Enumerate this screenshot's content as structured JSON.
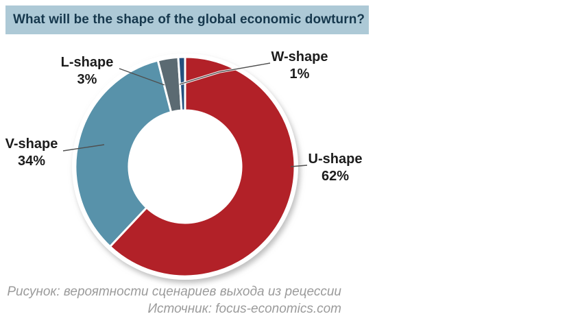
{
  "header": {
    "title": "What will be the shape of the global economic dowturn?"
  },
  "chart_data": {
    "type": "pie",
    "subtype": "donut",
    "title": "What will be the shape of the global economic dowturn?",
    "direction": "clockwise",
    "start_angle_deg": 0,
    "donut_hole_ratio": 0.51,
    "unit": "%",
    "slices": [
      {
        "label": "U-shape",
        "value": 62,
        "pct_label": "62%",
        "color": "#b22128"
      },
      {
        "label": "V-shape",
        "value": 34,
        "pct_label": "34%",
        "color": "#5892aa"
      },
      {
        "label": "L-shape",
        "value": 3,
        "pct_label": "3%",
        "color": "#5b6a72"
      },
      {
        "label": "W-shape",
        "value": 1,
        "pct_label": "1%",
        "color": "#24507e"
      }
    ],
    "legend_position": "callout-labels"
  },
  "caption": {
    "figure": "Рисунок: вероятности сценариев выхода из рецессии",
    "source": "Источник: focus-economics.com"
  },
  "colors": {
    "title_bar_bg": "#adc9d6",
    "title_text": "#16384d",
    "label_text": "#1c1c1c",
    "caption_text": "#9b9b9b",
    "background": "#ffffff"
  }
}
